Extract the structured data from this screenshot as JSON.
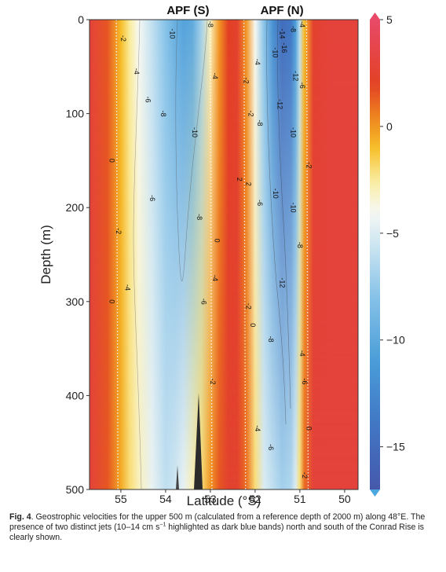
{
  "chart_data": {
    "type": "heatmap",
    "title": "",
    "xlabel": "Latitude (°S)",
    "ylabel": "Depth (m)",
    "xlim": [
      55.7,
      49.7
    ],
    "ylim": [
      0,
      500
    ],
    "x_reversed": true,
    "y_inverted": true,
    "xticks": [
      55,
      54,
      53,
      52,
      51,
      50
    ],
    "yticks": [
      0,
      100,
      200,
      300,
      400,
      500
    ],
    "colorbar": {
      "min": -17,
      "max": 5,
      "ticks": [
        5,
        0,
        -5,
        -10,
        -15
      ],
      "tick_labels": [
        "5",
        "0",
        "−5",
        "−10",
        "−15"
      ]
    },
    "top_labels": [
      {
        "text": "APF (S)",
        "lat": 53.5
      },
      {
        "text": "APF (N)",
        "lat": 51.4
      }
    ],
    "velocity_profile": [
      {
        "lat": 55.7,
        "surface": 3,
        "bottom": 3
      },
      {
        "lat": 55.3,
        "surface": 1.5,
        "bottom": 1.5
      },
      {
        "lat": 55.0,
        "surface": -1,
        "bottom": -0.5
      },
      {
        "lat": 54.8,
        "surface": -2.5,
        "bottom": -2
      },
      {
        "lat": 54.6,
        "surface": -4,
        "bottom": -3
      },
      {
        "lat": 54.3,
        "surface": -6,
        "bottom": -4.5
      },
      {
        "lat": 54.0,
        "surface": -8,
        "bottom": -6
      },
      {
        "lat": 53.8,
        "surface": -9.5,
        "bottom": -5.5
      },
      {
        "lat": 53.6,
        "surface": -10.5,
        "bottom": -4.5
      },
      {
        "lat": 53.4,
        "surface": -10,
        "bottom": -3
      },
      {
        "lat": 53.2,
        "surface": -7,
        "bottom": -2
      },
      {
        "lat": 53.0,
        "surface": -3,
        "bottom": 0
      },
      {
        "lat": 52.8,
        "surface": 0,
        "bottom": 1.5
      },
      {
        "lat": 52.6,
        "surface": 2,
        "bottom": 2.5
      },
      {
        "lat": 52.4,
        "surface": 2.5,
        "bottom": 2.5
      },
      {
        "lat": 52.2,
        "surface": 0,
        "bottom": 1
      },
      {
        "lat": 52.0,
        "surface": -4,
        "bottom": -2
      },
      {
        "lat": 51.8,
        "surface": -8,
        "bottom": -5
      },
      {
        "lat": 51.6,
        "surface": -12,
        "bottom": -6
      },
      {
        "lat": 51.4,
        "surface": -15,
        "bottom": -7
      },
      {
        "lat": 51.2,
        "surface": -14,
        "bottom": -6.5
      },
      {
        "lat": 51.1,
        "surface": -11,
        "bottom": -5
      },
      {
        "lat": 51.0,
        "surface": -6,
        "bottom": -2
      },
      {
        "lat": 50.9,
        "surface": -1,
        "bottom": 1
      },
      {
        "lat": 50.7,
        "surface": 2.5,
        "bottom": 3
      },
      {
        "lat": 50.3,
        "surface": 3,
        "bottom": 3
      },
      {
        "lat": 49.7,
        "surface": 3,
        "bottom": 3
      }
    ],
    "contour_labels": [
      {
        "text": "-2",
        "lat": 55.0,
        "depth": 20
      },
      {
        "text": "-4",
        "lat": 54.7,
        "depth": 55
      },
      {
        "text": "-6",
        "lat": 54.45,
        "depth": 85
      },
      {
        "text": "-8",
        "lat": 54.1,
        "depth": 100
      },
      {
        "text": "-10",
        "lat": 53.9,
        "depth": 15
      },
      {
        "text": "-10",
        "lat": 53.4,
        "depth": 120
      },
      {
        "text": "-8",
        "lat": 53.05,
        "depth": 5
      },
      {
        "text": "-4",
        "lat": 52.95,
        "depth": 60
      },
      {
        "text": "0",
        "lat": 55.25,
        "depth": 150
      },
      {
        "text": "-6",
        "lat": 54.35,
        "depth": 190
      },
      {
        "text": "-2",
        "lat": 55.1,
        "depth": 225
      },
      {
        "text": "-4",
        "lat": 54.9,
        "depth": 285
      },
      {
        "text": "0",
        "lat": 55.25,
        "depth": 300
      },
      {
        "text": "-8",
        "lat": 53.3,
        "depth": 210
      },
      {
        "text": "0",
        "lat": 52.9,
        "depth": 235
      },
      {
        "text": "-4",
        "lat": 52.95,
        "depth": 275
      },
      {
        "text": "-6",
        "lat": 53.2,
        "depth": 300
      },
      {
        "text": "-2",
        "lat": 53.0,
        "depth": 385
      },
      {
        "text": "2",
        "lat": 52.4,
        "depth": 170
      },
      {
        "text": "2",
        "lat": 52.2,
        "depth": 175
      },
      {
        "text": "-2",
        "lat": 52.25,
        "depth": 65
      },
      {
        "text": "-2",
        "lat": 52.15,
        "depth": 100
      },
      {
        "text": "-4",
        "lat": 52.0,
        "depth": 45
      },
      {
        "text": "-8",
        "lat": 51.95,
        "depth": 110
      },
      {
        "text": "-10",
        "lat": 51.6,
        "depth": 35
      },
      {
        "text": "-12",
        "lat": 51.5,
        "depth": 90
      },
      {
        "text": "-14",
        "lat": 51.45,
        "depth": 15
      },
      {
        "text": "-16",
        "lat": 51.4,
        "depth": 30
      },
      {
        "text": "-8",
        "lat": 51.2,
        "depth": 10
      },
      {
        "text": "-4",
        "lat": 51.0,
        "depth": 5
      },
      {
        "text": "-12",
        "lat": 51.15,
        "depth": 60
      },
      {
        "text": "-6",
        "lat": 51.0,
        "depth": 70
      },
      {
        "text": "-10",
        "lat": 51.2,
        "depth": 120
      },
      {
        "text": "-6",
        "lat": 51.95,
        "depth": 195
      },
      {
        "text": "-10",
        "lat": 51.6,
        "depth": 185
      },
      {
        "text": "-10",
        "lat": 51.2,
        "depth": 200
      },
      {
        "text": "-8",
        "lat": 51.05,
        "depth": 240
      },
      {
        "text": "-2",
        "lat": 50.85,
        "depth": 155
      },
      {
        "text": "-12",
        "lat": 51.45,
        "depth": 280
      },
      {
        "text": "-2",
        "lat": 52.2,
        "depth": 305
      },
      {
        "text": "0",
        "lat": 52.1,
        "depth": 325
      },
      {
        "text": "-8",
        "lat": 51.7,
        "depth": 340
      },
      {
        "text": "-4",
        "lat": 51.0,
        "depth": 355
      },
      {
        "text": "-6",
        "lat": 50.95,
        "depth": 385
      },
      {
        "text": "0",
        "lat": 50.85,
        "depth": 435
      },
      {
        "text": "-4",
        "lat": 52.0,
        "depth": 435
      },
      {
        "text": "-6",
        "lat": 51.7,
        "depth": 455
      },
      {
        "text": "-2",
        "lat": 50.95,
        "depth": 485
      }
    ]
  },
  "caption": {
    "label": "Fig. 4",
    "text1": ". Geostrophic velocities for the upper 500 m (calculated from a reference depth of 2000 m) along 48°E. The presence of two distinct jets (10–14 cm s",
    "sup": "−1",
    "text2": " highlighted as dark blue bands) north and south of the Conrad Rise is clearly shown."
  }
}
